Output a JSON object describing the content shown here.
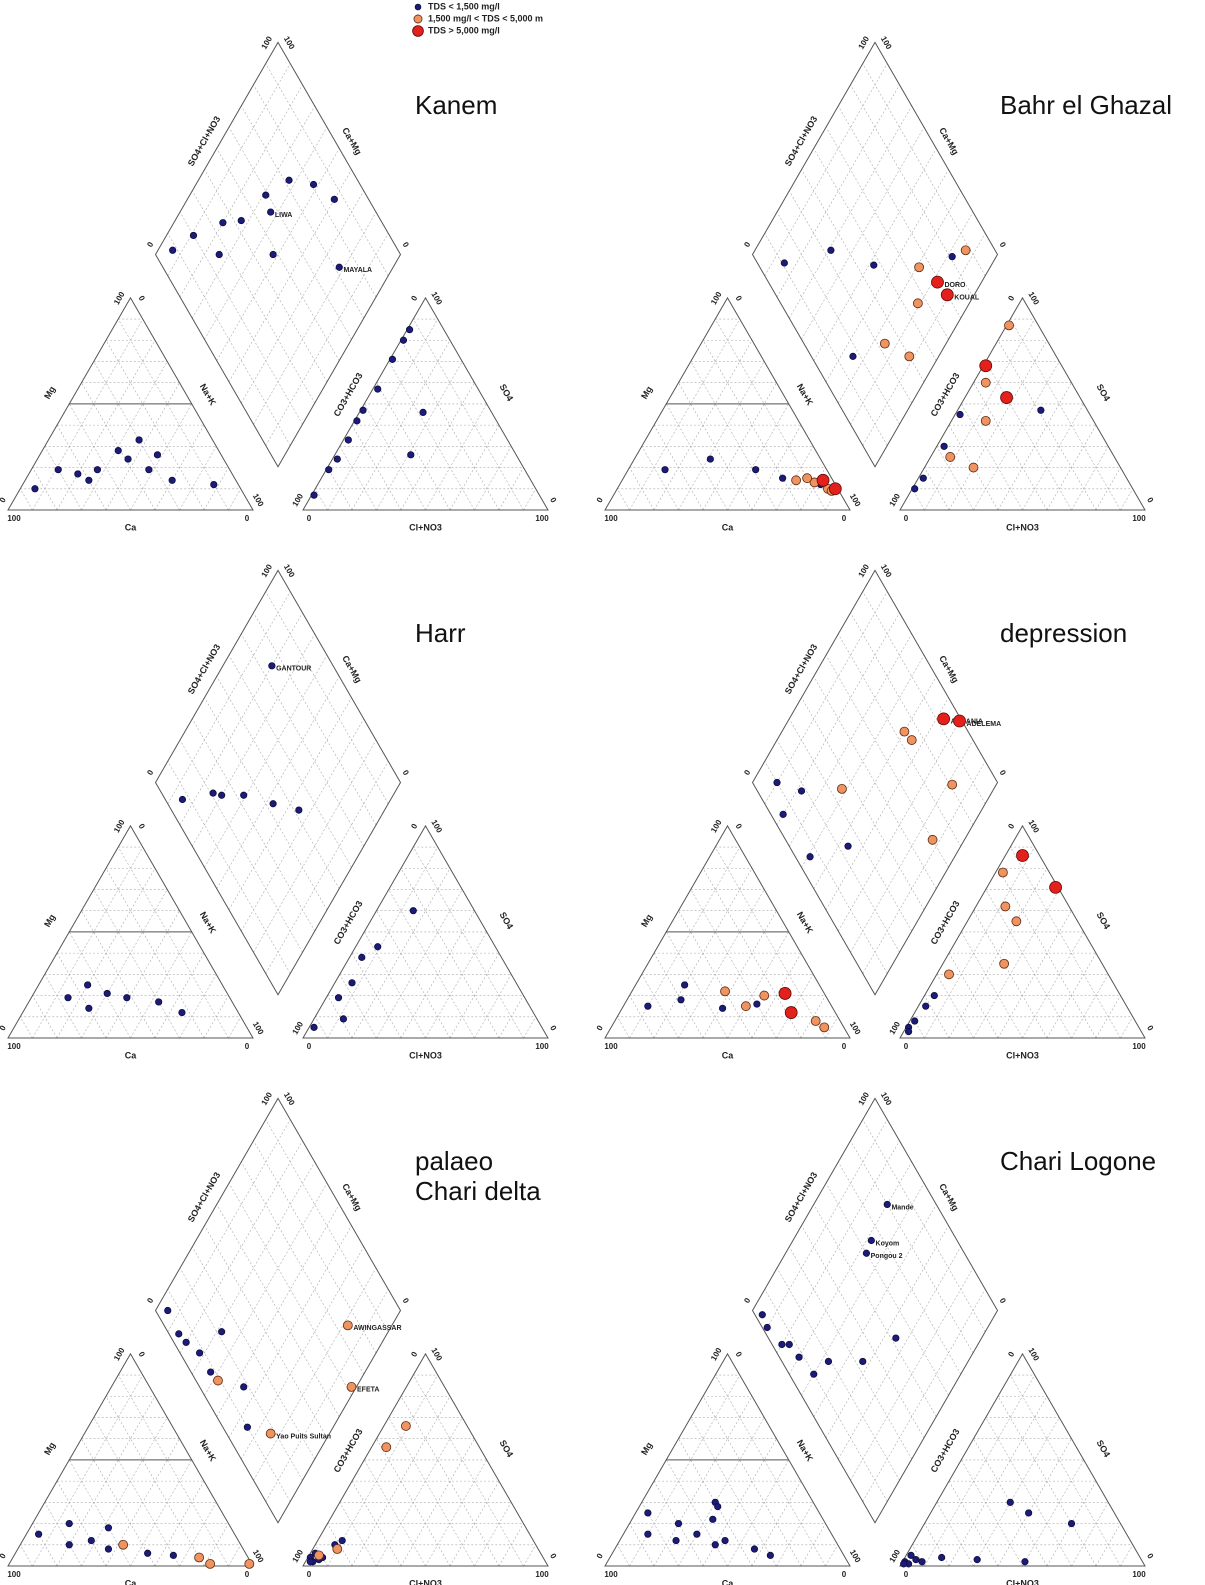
{
  "legend": [
    {
      "name": "TDS < 1,500 mg/l",
      "color": "#1c1c78"
    },
    {
      "name": "1,500 mg/l < TDS < 5,000 m",
      "color": "#ef9360"
    },
    {
      "name": "TDS > 5,000 mg/l",
      "color": "#e3201b"
    }
  ],
  "axis_labels": {
    "cation_left": "Mg",
    "cation_bottom": "Ca",
    "cation_right": "Na+K",
    "anion_left": "CO3+HCO3",
    "anion_bottom": "Cl+NO3",
    "anion_right": "SO4",
    "diamond_left": "SO4+Cl+NO3",
    "diamond_right": "Ca+Mg"
  },
  "ticks": [
    0,
    100
  ],
  "grid": true,
  "chart_data": [
    {
      "type": "piper",
      "title": "Kanem",
      "samples": [
        {
          "ca": 84,
          "mg": 10,
          "cl": 1,
          "so4": 7,
          "tds": 0
        },
        {
          "ca": 70,
          "mg": 19,
          "cl": 1,
          "so4": 19,
          "tds": 0
        },
        {
          "ca": 63,
          "mg": 17,
          "cl": 2,
          "so4": 33,
          "tds": 0
        },
        {
          "ca": 54,
          "mg": 19,
          "cl": 1,
          "so4": 42,
          "tds": 0
        },
        {
          "ca": 41,
          "mg": 28,
          "cl": 2,
          "so4": 57,
          "tds": 0
        },
        {
          "ca": 30,
          "mg": 33,
          "cl": 1,
          "so4": 71,
          "tds": 0
        },
        {
          "ca": 26,
          "mg": 26,
          "cl": 1,
          "so4": 80,
          "tds": 0
        },
        {
          "ca": 26,
          "mg": 14,
          "cl": 1,
          "so4": 85,
          "tds": 0
        },
        {
          "ca": 10,
          "mg": 12,
          "cl": 26,
          "so4": 46,
          "tds": 0,
          "label": "MAYALA"
        },
        {
          "ca": 39,
          "mg": 24,
          "cl": 31,
          "so4": 26,
          "tds": 0,
          "label": "LIWA"
        },
        {
          "ca": 60,
          "mg": 14,
          "cl": 2,
          "so4": 24,
          "tds": 0
        },
        {
          "ca": 33,
          "mg": 19,
          "cl": 1,
          "so4": 47,
          "tds": 0
        }
      ]
    },
    {
      "type": "piper",
      "title": "Bahr el Ghazal",
      "samples": [
        {
          "ca": 66,
          "mg": 19,
          "cl": 1,
          "so4": 10,
          "tds": 0
        },
        {
          "ca": 45,
          "mg": 24,
          "cl": 3,
          "so4": 30,
          "tds": 0
        },
        {
          "ca": 29,
          "mg": 19,
          "cl": 2,
          "so4": 45,
          "tds": 0
        },
        {
          "ca": 15,
          "mg": 14,
          "cl": 5,
          "so4": 60,
          "tds": 1
        },
        {
          "ca": 8,
          "mg": 13,
          "cl": 14,
          "so4": 42,
          "tds": 1
        },
        {
          "ca": 6,
          "mg": 12,
          "cl": 34,
          "so4": 47,
          "tds": 0
        },
        {
          "ca": 4,
          "mg": 10,
          "cl": 1,
          "so4": 87,
          "tds": 1
        },
        {
          "ca": 4,
          "mg": 14,
          "cl": 1,
          "so4": 68,
          "tds": 2,
          "label": "DORO"
        },
        {
          "ca": 1,
          "mg": 10,
          "cl": 17,
          "so4": 53,
          "tds": 2,
          "label": "KOUAL"
        },
        {
          "ca": 10,
          "mg": 15,
          "cl": 8,
          "so4": 25,
          "tds": 1
        },
        {
          "ca": 20,
          "mg": 15,
          "cl": 2,
          "so4": 15,
          "tds": 0
        },
        {
          "ca": 3,
          "mg": 9,
          "cl": 20,
          "so4": 20,
          "tds": 1
        }
      ]
    },
    {
      "type": "piper",
      "title": "Harr",
      "samples": [
        {
          "ca": 66,
          "mg": 19,
          "cl": 2,
          "so4": 5,
          "tds": 0
        },
        {
          "ca": 60,
          "mg": 14,
          "cl": 12,
          "so4": 9,
          "tds": 0
        },
        {
          "ca": 49,
          "mg": 21,
          "cl": 5,
          "so4": 19,
          "tds": 0
        },
        {
          "ca": 42,
          "mg": 19,
          "cl": 7,
          "so4": 26,
          "tds": 0
        },
        {
          "ca": 30,
          "mg": 17,
          "cl": 5,
          "so4": 38,
          "tds": 0
        },
        {
          "ca": 23,
          "mg": 12,
          "cl": 9,
          "so4": 43,
          "tds": 0
        },
        {
          "ca": 55,
          "mg": 25,
          "cl": 15,
          "so4": 60,
          "tds": 0,
          "label": "GANTOUR"
        }
      ]
    },
    {
      "type": "piper",
      "title": "depression",
      "samples": [
        {
          "ca": 75,
          "mg": 15,
          "cl": 2,
          "so4": 8,
          "tds": 0
        },
        {
          "ca": 60,
          "mg": 18,
          "cl": 3,
          "so4": 15,
          "tds": 0
        },
        {
          "ca": 40,
          "mg": 22,
          "cl": 5,
          "so4": 30,
          "tds": 1
        },
        {
          "ca": 45,
          "mg": 14,
          "cl": 1,
          "so4": 5,
          "tds": 0
        },
        {
          "ca": 16,
          "mg": 21,
          "cl": 7,
          "so4": 86,
          "tds": 2,
          "label": "ABRANIA"
        },
        {
          "ca": 18,
          "mg": 12,
          "cl": 28,
          "so4": 71,
          "tds": 2,
          "label": "ADELEMA"
        },
        {
          "ca": 10,
          "mg": 8,
          "cl": 3,
          "so4": 78,
          "tds": 1
        },
        {
          "ca": 25,
          "mg": 20,
          "cl": 20,
          "so4": 55,
          "tds": 1
        },
        {
          "ca": 30,
          "mg": 16,
          "cl": 4,
          "so4": 20,
          "tds": 0
        },
        {
          "ca": 8,
          "mg": 5,
          "cl": 25,
          "so4": 35,
          "tds": 1
        },
        {
          "ca": 55,
          "mg": 25,
          "cl": 2,
          "so4": 3,
          "tds": 0
        },
        {
          "ca": 35,
          "mg": 15,
          "cl": 12,
          "so4": 62,
          "tds": 1
        }
      ]
    },
    {
      "type": "piper",
      "title": "palaeo\nChari delta",
      "samples": [
        {
          "ca": 80,
          "mg": 15,
          "cl": 1,
          "so4": 4,
          "tds": 0
        },
        {
          "ca": 70,
          "mg": 10,
          "cl": 3,
          "so4": 2,
          "tds": 0
        },
        {
          "ca": 60,
          "mg": 12,
          "cl": 2,
          "so4": 6,
          "tds": 0
        },
        {
          "ca": 55,
          "mg": 8,
          "cl": 5,
          "so4": 3,
          "tds": 0
        },
        {
          "ca": 48,
          "mg": 10,
          "cl": 4,
          "so4": 5,
          "tds": 1
        },
        {
          "ca": 40,
          "mg": 6,
          "cl": 8,
          "so4": 10,
          "tds": 0
        },
        {
          "ca": 30,
          "mg": 5,
          "cl": 6,
          "so4": 4,
          "tds": 0
        },
        {
          "ca": 17,
          "mg": 1,
          "cl": 9,
          "so4": 66,
          "tds": 1,
          "label": "AWINGASSAR"
        },
        {
          "ca": 1,
          "mg": 1,
          "cl": 6,
          "so4": 56,
          "tds": 1,
          "label": "EFETA"
        },
        {
          "ca": 20,
          "mg": 4,
          "cl": 10,
          "so4": 8,
          "tds": 1,
          "label": "Yao Puits Sultan"
        },
        {
          "ca": 65,
          "mg": 20,
          "cl": 2,
          "so4": 2,
          "tds": 0
        },
        {
          "ca": 50,
          "mg": 18,
          "cl": 10,
          "so4": 12,
          "tds": 0
        }
      ]
    },
    {
      "type": "piper",
      "title": "Chari Logone",
      "samples": [
        {
          "ca": 70,
          "mg": 25,
          "cl": 1,
          "so4": 2,
          "tds": 0
        },
        {
          "ca": 60,
          "mg": 20,
          "cl": 3,
          "so4": 1,
          "tds": 0
        },
        {
          "ca": 55,
          "mg": 15,
          "cl": 5,
          "so4": 3,
          "tds": 0
        },
        {
          "ca": 50,
          "mg": 10,
          "cl": 8,
          "so4": 2,
          "tds": 0
        },
        {
          "ca": 45,
          "mg": 12,
          "cl": 15,
          "so4": 4,
          "tds": 0
        },
        {
          "ca": 35,
          "mg": 8,
          "cl": 30,
          "so4": 3,
          "tds": 0
        },
        {
          "ca": 30,
          "mg": 5,
          "cl": 50,
          "so4": 2,
          "tds": 0
        },
        {
          "ca": 65,
          "mg": 12,
          "cl": 2,
          "so4": 5,
          "tds": 0
        },
        {
          "ca": 75,
          "mg": 15,
          "cl": 1,
          "so4": 1,
          "tds": 0
        },
        {
          "ca": 40,
          "mg": 30,
          "cl": 60,
          "so4": 20,
          "tds": 0,
          "label": "Mande"
        },
        {
          "ca": 40,
          "mg": 28,
          "cl": 40,
          "so4": 25,
          "tds": 0,
          "label": "Koyom"
        },
        {
          "ca": 45,
          "mg": 22,
          "cl": 30,
          "so4": 30,
          "tds": 0,
          "label": "Pongou 2"
        }
      ]
    }
  ]
}
